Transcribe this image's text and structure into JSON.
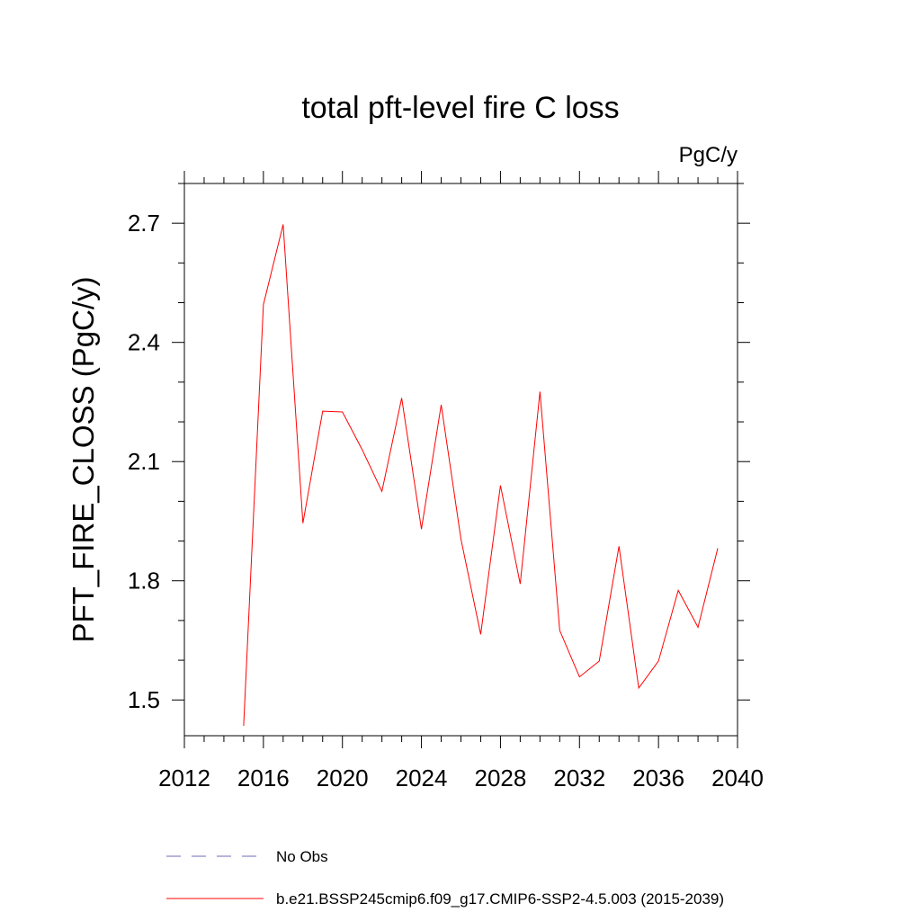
{
  "chart_data": {
    "type": "line",
    "title": "total pft-level fire C loss",
    "units": "PgC/y",
    "xlabel": "",
    "ylabel": "PFT_FIRE_CLOSS  (PgC/y)",
    "xlim": [
      2012,
      2040
    ],
    "ylim": [
      1.41,
      2.8
    ],
    "x_ticks": [
      2012,
      2016,
      2020,
      2024,
      2028,
      2032,
      2036,
      2040
    ],
    "x_tick_labels": [
      "2012",
      "2016",
      "2020",
      "2024",
      "2028",
      "2032",
      "2036",
      "2040"
    ],
    "y_ticks": [
      1.5,
      1.8,
      2.1,
      2.4,
      2.7
    ],
    "y_tick_labels": [
      "1.5",
      "1.8",
      "2.1",
      "2.4",
      "2.7"
    ],
    "grid": false,
    "legend_position": "bottom",
    "series": [
      {
        "name": "b.e21.BSSP245cmip6.f09_g17.CMIP6-SSP2-4.5.003 (2015-2039)",
        "color": "#ff0000",
        "style": "solid",
        "x": [
          2015,
          2016,
          2017,
          2018,
          2019,
          2020,
          2021,
          2022,
          2023,
          2024,
          2025,
          2026,
          2027,
          2028,
          2029,
          2030,
          2031,
          2032,
          2033,
          2034,
          2035,
          2036,
          2037,
          2038,
          2039
        ],
        "values": [
          1.435,
          2.495,
          2.697,
          1.945,
          2.227,
          2.225,
          2.13,
          2.025,
          2.26,
          1.93,
          2.243,
          1.905,
          1.665,
          2.04,
          1.792,
          2.276,
          1.675,
          1.558,
          1.598,
          1.887,
          1.53,
          1.598,
          1.776,
          1.683,
          1.882
        ]
      }
    ],
    "legend": [
      {
        "label": "No Obs",
        "color": "#6b6bb5",
        "style": "dashed"
      },
      {
        "label": "b.e21.BSSP245cmip6.f09_g17.CMIP6-SSP2-4.5.003 (2015-2039)",
        "color": "#ff0000",
        "style": "solid"
      }
    ]
  }
}
